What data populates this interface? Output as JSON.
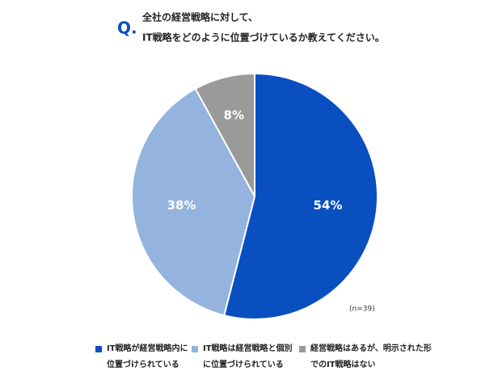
{
  "chart_data": {
    "type": "pie",
    "question_mark": "Q.",
    "title": [
      "全社の経営戦略に対して、",
      "IT戦略をどのように位置づけているか教えてください。"
    ],
    "note": "(n=39)",
    "series": [
      {
        "name": "IT戦略が経営戦略内に位置づけられている",
        "color": "#0a4fc0",
        "values": [
          54
        ],
        "value_labels": [
          "54%"
        ]
      },
      {
        "name": "IT戦略は経営戦略と個別に位置づけられている",
        "color": "#94b3de",
        "values": [
          38
        ],
        "value_labels": [
          "38%"
        ]
      },
      {
        "name": "経営戦略はあるが、明示された形でのIT戦略はない",
        "color": "#9a9a9a",
        "values": [
          8
        ],
        "value_labels": [
          "8%"
        ]
      }
    ]
  }
}
